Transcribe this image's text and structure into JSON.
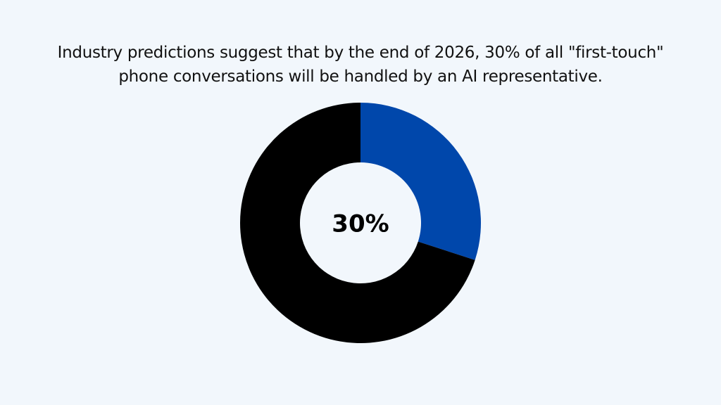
{
  "chart_data": {
    "type": "donut",
    "title": "Industry predictions suggest that by the end of 2026, 30% of all \"first-touch\" phone conversations will be handled by an AI representative.",
    "values": [
      30,
      70
    ],
    "colors": [
      "#0047ab",
      "#000000"
    ],
    "center_label": "30%"
  }
}
